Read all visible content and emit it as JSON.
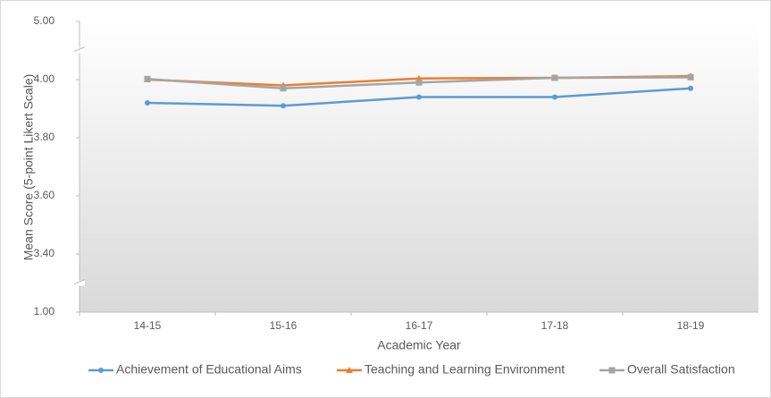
{
  "chart_data": {
    "type": "line",
    "x_label": "Academic Year",
    "y_label": "Mean Score (5-point Likert Scale)",
    "categories": [
      "14-15",
      "15-16",
      "16-17",
      "17-18",
      "18-19"
    ],
    "series": [
      {
        "name": "Achievement of Educational Aims",
        "color": "#5b9bd5",
        "marker": "circle",
        "values": [
          3.92,
          3.91,
          3.94,
          3.94,
          3.97
        ]
      },
      {
        "name": "Teaching and Learning Environment",
        "color": "#ed7d31",
        "marker": "triangle",
        "values": [
          4.0,
          3.98,
          4.02,
          4.03,
          4.06
        ]
      },
      {
        "name": "Overall Satisfaction",
        "color": "#a5a5a5",
        "marker": "square",
        "values": [
          4.01,
          3.97,
          3.99,
          4.03,
          4.04
        ]
      }
    ],
    "ylim": [
      1,
      5
    ],
    "yticks": [
      {
        "value": 1,
        "label": "1.00"
      },
      {
        "value": 3.4,
        "label": "3.40"
      },
      {
        "value": 3.6,
        "label": "3.60"
      },
      {
        "value": 3.8,
        "label": "3.80"
      },
      {
        "value": 4,
        "label": "4.00"
      },
      {
        "value": 5,
        "label": "5.00"
      }
    ],
    "axis_break": true,
    "legend": "bottom"
  }
}
